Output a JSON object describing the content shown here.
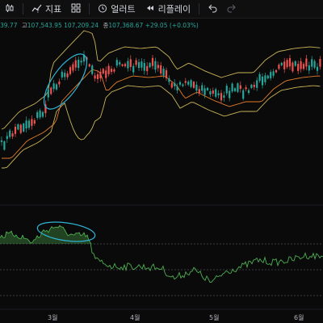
{
  "toolbar": {
    "candles_icon": "candlestick-icon",
    "indicators_label": "지표",
    "layout_icon": "grid-icon",
    "alert_label": "얼러트",
    "replay_label": "리플레이",
    "undo_icon": "undo-icon",
    "redo_icon": "redo-icon"
  },
  "ohlc": {
    "open_fragment": "39.77",
    "high_label": "고",
    "high_value": "107,543.95",
    "low_fragment": "107,209.24",
    "close_label": "종",
    "close_value": "107,368.67",
    "change": "+29.05 (+0.03%)"
  },
  "xaxis": {
    "labels": [
      "3월",
      "4월",
      "5월",
      "6월"
    ]
  },
  "colors": {
    "up": "#26a69a",
    "down": "#ef5350",
    "bb_band": "#c9b458",
    "bb_basis": "#e07b2a",
    "rsi_line": "#4caf50",
    "annotation": "#2fb4d6"
  }
}
